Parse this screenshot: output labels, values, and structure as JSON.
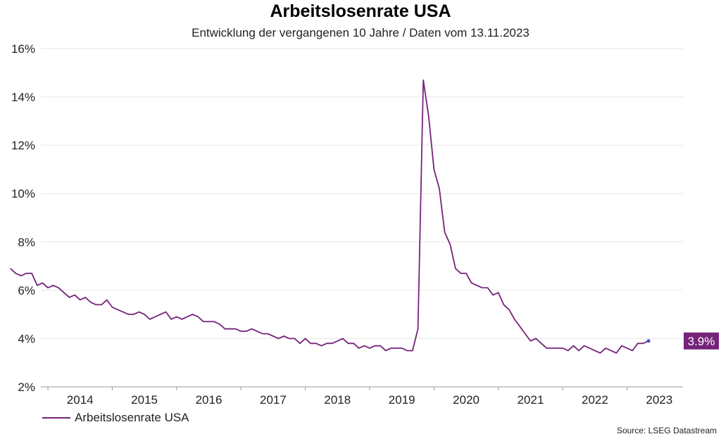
{
  "header": {
    "title": "Arbeitslosenrate USA",
    "subtitle": "Entwicklung der vergangenen 10 Jahre / Daten vom 13.11.2023"
  },
  "legend": {
    "label": "Arbeitslosenrate USA"
  },
  "source": "Source: LSEG Datastream",
  "colors": {
    "line": "#76237a",
    "end_point": "#3b4fd0",
    "grid": "#e6e6e6",
    "axis": "#9a9a9a"
  },
  "chart_data": {
    "type": "line",
    "title": "Arbeitslosenrate USA",
    "subtitle": "Entwicklung der vergangenen 10 Jahre / Daten vom 13.11.2023",
    "xlabel": "",
    "ylabel": "",
    "ylim": [
      2,
      16
    ],
    "y_ticks": [
      "2%",
      "4%",
      "6%",
      "8%",
      "10%",
      "12%",
      "14%",
      "16%"
    ],
    "y_tick_values": [
      2,
      4,
      6,
      8,
      10,
      12,
      14,
      16
    ],
    "x_ticks": [
      "2014",
      "2015",
      "2016",
      "2017",
      "2018",
      "2019",
      "2020",
      "2021",
      "2022",
      "2023"
    ],
    "grid": true,
    "legend_position": "bottom-left",
    "end_label": "3.9%",
    "series": [
      {
        "name": "Arbeitslosenrate USA",
        "x_start": "2013-06",
        "frequency": "monthly",
        "values": [
          6.9,
          6.7,
          6.6,
          6.7,
          6.7,
          6.2,
          6.3,
          6.1,
          6.2,
          6.1,
          5.9,
          5.7,
          5.8,
          5.6,
          5.7,
          5.5,
          5.4,
          5.4,
          5.6,
          5.3,
          5.2,
          5.1,
          5.0,
          5.0,
          5.1,
          5.0,
          4.8,
          4.9,
          5.0,
          5.1,
          4.8,
          4.9,
          4.8,
          4.9,
          5.0,
          4.9,
          4.7,
          4.7,
          4.7,
          4.6,
          4.4,
          4.4,
          4.4,
          4.3,
          4.3,
          4.4,
          4.3,
          4.2,
          4.2,
          4.1,
          4.0,
          4.1,
          4.0,
          4.0,
          3.8,
          4.0,
          3.8,
          3.8,
          3.7,
          3.8,
          3.8,
          3.9,
          4.0,
          3.8,
          3.8,
          3.6,
          3.7,
          3.6,
          3.7,
          3.7,
          3.5,
          3.6,
          3.6,
          3.6,
          3.5,
          3.5,
          4.4,
          14.7,
          13.2,
          11.0,
          10.2,
          8.4,
          7.9,
          6.9,
          6.7,
          6.7,
          6.3,
          6.2,
          6.1,
          6.1,
          5.8,
          5.9,
          5.4,
          5.2,
          4.8,
          4.5,
          4.2,
          3.9,
          4.0,
          3.8,
          3.6,
          3.6,
          3.6,
          3.6,
          3.5,
          3.7,
          3.5,
          3.7,
          3.6,
          3.5,
          3.4,
          3.6,
          3.5,
          3.4,
          3.7,
          3.6,
          3.5,
          3.8,
          3.8,
          3.9
        ]
      }
    ]
  }
}
